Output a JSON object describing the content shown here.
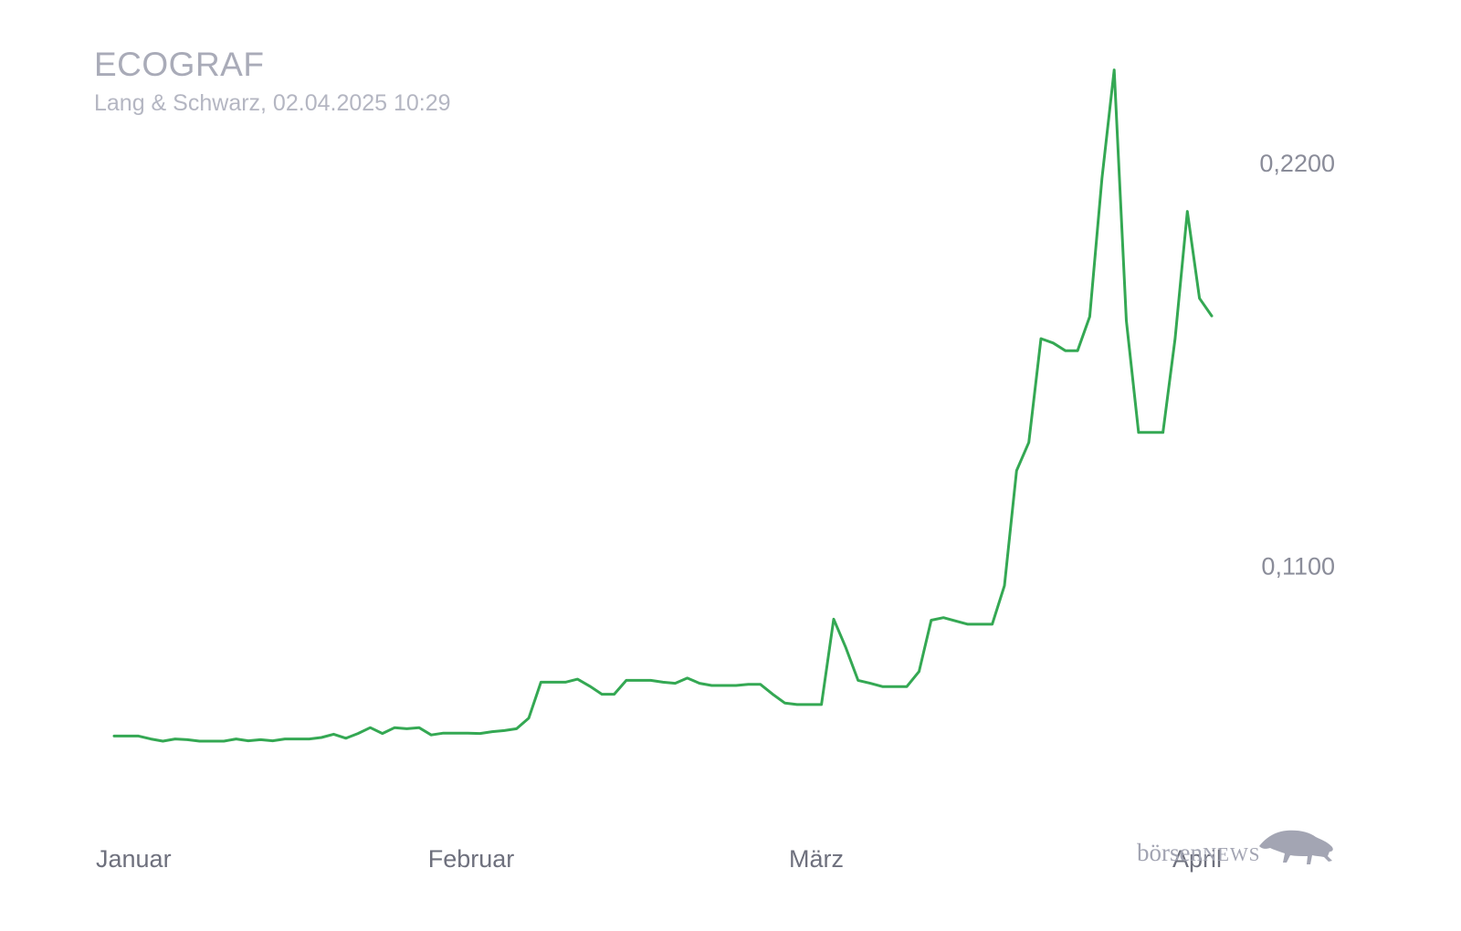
{
  "header": {
    "title": "ECOGRAF",
    "subtitle": "Lang & Schwarz, 02.04.2025 10:29"
  },
  "brand": {
    "text_lower": "börsen",
    "text_upper": "NEWS"
  },
  "chart_data": {
    "type": "line",
    "title": "ECOGRAF",
    "subtitle": "Lang & Schwarz, 02.04.2025 10:29",
    "xlabel": "",
    "ylabel": "",
    "x_tick_labels": [
      "Januar",
      "Februar",
      "März",
      "April"
    ],
    "y_ticks": [
      {
        "value": 0.22,
        "label": "0,2200"
      },
      {
        "value": 0.11,
        "label": "0,1100"
      }
    ],
    "ylim": [
      0.0402,
      0.2543
    ],
    "grid": false,
    "legend": "none",
    "line_color": "#34a853",
    "series": [
      {
        "values": [
          0.0635,
          0.0635,
          0.0635,
          0.0627,
          0.0621,
          0.0627,
          0.0625,
          0.0621,
          0.0621,
          0.0621,
          0.0627,
          0.0622,
          0.0625,
          0.0622,
          0.0627,
          0.0627,
          0.0627,
          0.0631,
          0.064,
          0.0629,
          0.0642,
          0.0658,
          0.0642,
          0.0658,
          0.0655,
          0.0658,
          0.0638,
          0.0643,
          0.0643,
          0.0643,
          0.0642,
          0.0647,
          0.065,
          0.0655,
          0.0684,
          0.0782,
          0.0782,
          0.0782,
          0.079,
          0.0771,
          0.0749,
          0.0749,
          0.0787,
          0.0787,
          0.0787,
          0.0782,
          0.0779,
          0.0793,
          0.0779,
          0.0773,
          0.0773,
          0.0773,
          0.0776,
          0.0776,
          0.0749,
          0.0725,
          0.0721,
          0.0721,
          0.0721,
          0.0954,
          0.0876,
          0.0787,
          0.0779,
          0.077,
          0.077,
          0.077,
          0.0811,
          0.0951,
          0.0958,
          0.0949,
          0.094,
          0.094,
          0.094,
          0.1045,
          0.1359,
          0.1436,
          0.1719,
          0.1707,
          0.1686,
          0.1686,
          0.1779,
          0.2156,
          0.2452,
          0.1768,
          0.1463,
          0.1463,
          0.1463,
          0.1719,
          0.2066,
          0.1829,
          0.1781
        ]
      }
    ]
  }
}
